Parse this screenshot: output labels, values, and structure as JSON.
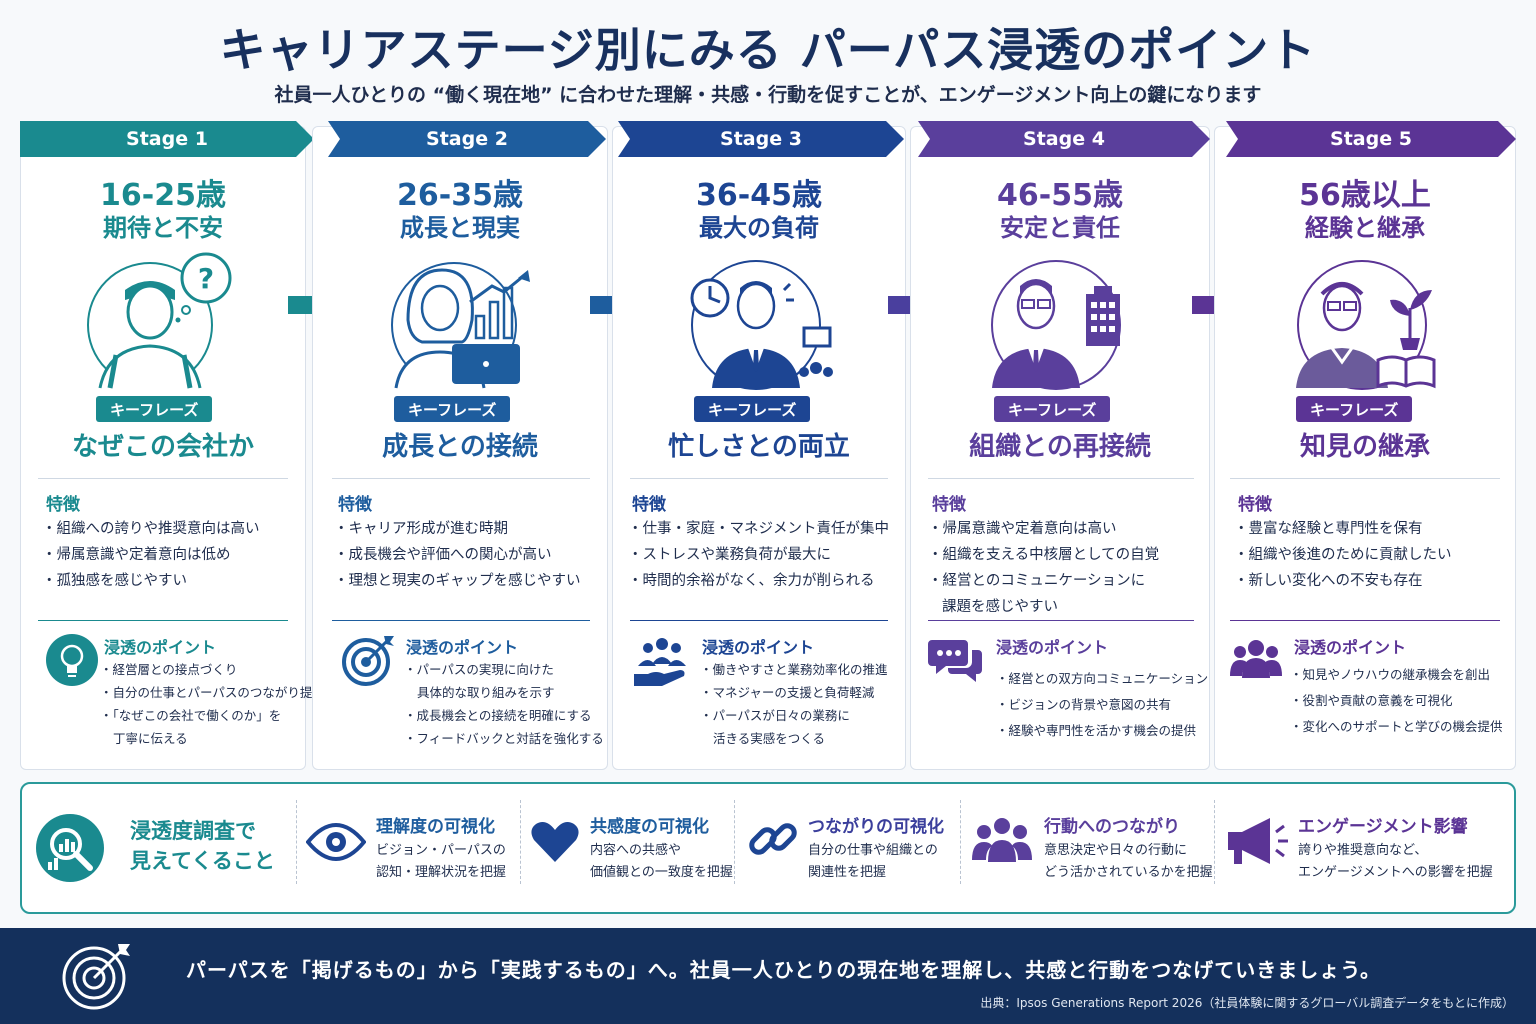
{
  "header": {
    "title": "キャリアステージ別にみる パーパス浸透のポイント",
    "subtitle": "社員一人ひとりの “働く現在地” に合わせた理解・共感・行動を促すことが、エンゲージメント向上の鍵になります"
  },
  "colors": [
    "#1a8a8f",
    "#1e5d9e",
    "#1d4593",
    "#5a3f9c",
    "#5b3495"
  ],
  "stages": [
    {
      "label": "Stage 1",
      "age": "16-25歳",
      "theme": "期待と不安",
      "keyphrase_label": "キーフレーズ",
      "keyphrase": "なぜこの会社か",
      "features_title": "特徴",
      "features": [
        "組織への誇りや推奨意向は高い",
        "帰属意識や定着意向は低め",
        "孤独感を感じやすい"
      ],
      "points_title": "浸透のポイント",
      "points": [
        "経営層との接点づくり",
        "自分の仕事とパーパスのつながり提示",
        "「なぜこの会社で働くのか」を",
        "丁寧に伝える"
      ]
    },
    {
      "label": "Stage 2",
      "age": "26-35歳",
      "theme": "成長と現実",
      "keyphrase_label": "キーフレーズ",
      "keyphrase": "成長との接続",
      "features_title": "特徴",
      "features": [
        "キャリア形成が進む時期",
        "成長機会や評価への関心が高い",
        "理想と現実のギャップを感じやすい"
      ],
      "points_title": "浸透のポイント",
      "points": [
        "パーパスの実現に向けた",
        "具体的な取り組みを示す",
        "成長機会との接続を明確にする",
        "フィードバックと対話を強化する"
      ]
    },
    {
      "label": "Stage 3",
      "age": "36-45歳",
      "theme": "最大の負荷",
      "keyphrase_label": "キーフレーズ",
      "keyphrase": "忙しさとの両立",
      "features_title": "特徴",
      "features": [
        "仕事・家庭・マネジメント責任が集中",
        "ストレスや業務負荷が最大に",
        "時間的余裕がなく、余力が削られる"
      ],
      "points_title": "浸透のポイント",
      "points": [
        "働きやすさと業務効率化の推進",
        "マネジャーの支援と負荷軽減",
        "パーパスが日々の業務に",
        "活きる実感をつくる"
      ]
    },
    {
      "label": "Stage 4",
      "age": "46-55歳",
      "theme": "安定と責任",
      "keyphrase_label": "キーフレーズ",
      "keyphrase": "組織との再接続",
      "features_title": "特徴",
      "features": [
        "帰属意識や定着意向は高い",
        "組織を支える中核層としての自覚",
        "経営とのコミュニケーションに",
        "課題を感じやすい"
      ],
      "points_title": "浸透のポイント",
      "points": [
        "経営との双方向コミュニケーション",
        "ビジョンの背景や意図の共有",
        "経験や専門性を活かす機会の提供"
      ]
    },
    {
      "label": "Stage 5",
      "age": "56歳以上",
      "theme": "経験と継承",
      "keyphrase_label": "キーフレーズ",
      "keyphrase": "知見の継承",
      "features_title": "特徴",
      "features": [
        "豊富な経験と専門性を保有",
        "組織や後進のために貢献したい",
        "新しい変化への不安も存在"
      ],
      "points_title": "浸透のポイント",
      "points": [
        "知見やノウハウの継承機会を創出",
        "役割や貢献の意義を可視化",
        "変化へのサポートと学びの機会提供"
      ]
    }
  ],
  "survey": {
    "heading_line1": "浸透度調査で",
    "heading_line2": "見えてくること",
    "items": [
      {
        "title": "理解度の可視化",
        "line1": "ビジョン・パーパスの",
        "line2": "認知・理解状況を把握"
      },
      {
        "title": "共感度の可視化",
        "line1": "内容への共感や",
        "line2": "価値観との一致度を把握"
      },
      {
        "title": "つながりの可視化",
        "line1": "自分の仕事や組織との",
        "line2": "関連性を把握"
      },
      {
        "title": "行動へのつながり",
        "line1": "意思決定や日々の行動に",
        "line2": "どう活かされているかを把握"
      },
      {
        "title": "エンゲージメント影響",
        "line1": "誇りや推奨意向など、",
        "line2": "エンゲージメントへの影響を把握"
      }
    ]
  },
  "footer": {
    "message": "パーパスを「掲げるもの」から「実践するもの」へ。社員一人ひとりの現在地を理解し、共感と行動をつなげていきましょう。",
    "source": "出典：Ipsos Generations Report 2026（社員体験に関するグローバル調査データをもとに作成）"
  }
}
